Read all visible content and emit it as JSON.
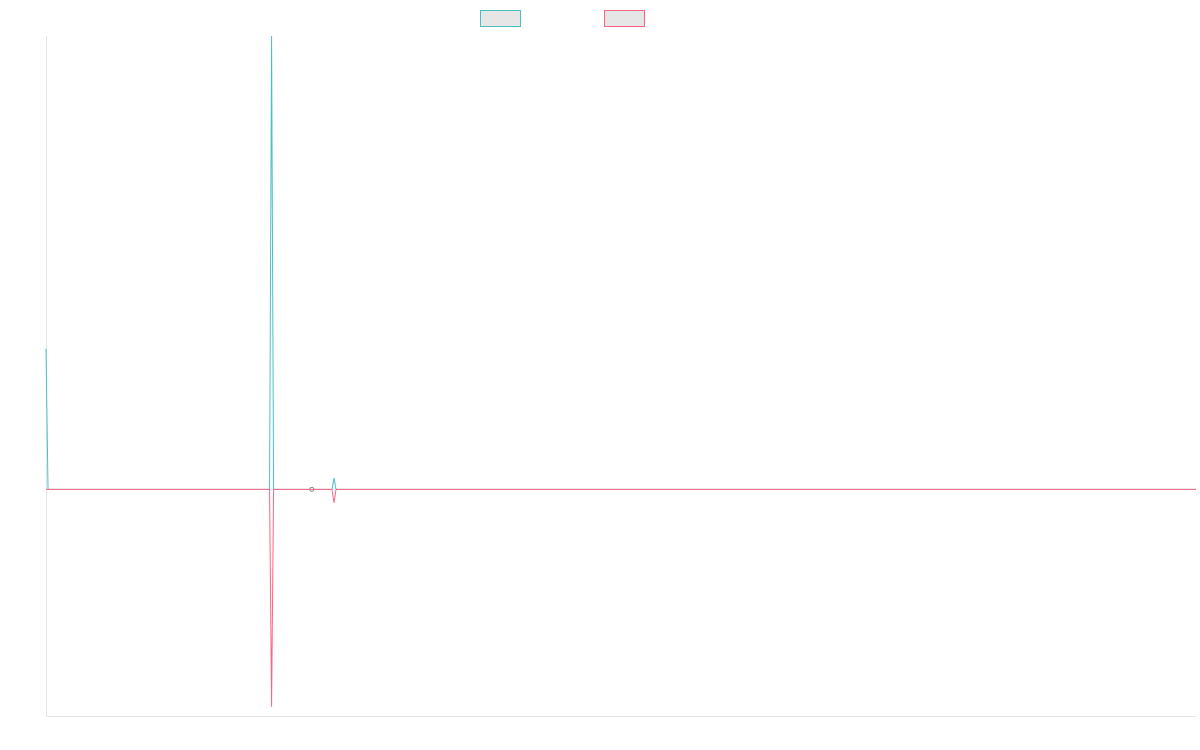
{
  "chart_data": {
    "type": "line",
    "x_count": 572,
    "ylim": [
      -100,
      200
    ],
    "grid": false,
    "legend_placement": "top-center",
    "series": [
      {
        "color": "#4bc0c0",
        "fill_color": "#e6e6e6",
        "default_value": 0,
        "points": [
          {
            "x": 0,
            "y": 62
          },
          {
            "x": 1,
            "y": 0
          },
          {
            "x": 111,
            "y": 0
          },
          {
            "x": 112,
            "y": 203
          },
          {
            "x": 113,
            "y": 0
          },
          {
            "x": 132,
            "y": 0
          },
          {
            "x": 142,
            "y": 0
          },
          {
            "x": 143,
            "y": 5
          },
          {
            "x": 144,
            "y": 0
          }
        ],
        "marker_at_x": [
          132
        ]
      },
      {
        "color": "#ff6384",
        "fill_color": "#e6e6e6",
        "default_value": 0,
        "points": [
          {
            "x": 0,
            "y": 0
          },
          {
            "x": 111,
            "y": 0
          },
          {
            "x": 112,
            "y": -96
          },
          {
            "x": 113,
            "y": 0
          },
          {
            "x": 142,
            "y": 0
          },
          {
            "x": 143,
            "y": -6
          },
          {
            "x": 144,
            "y": 0
          }
        ],
        "marker_at_x": []
      }
    ]
  }
}
